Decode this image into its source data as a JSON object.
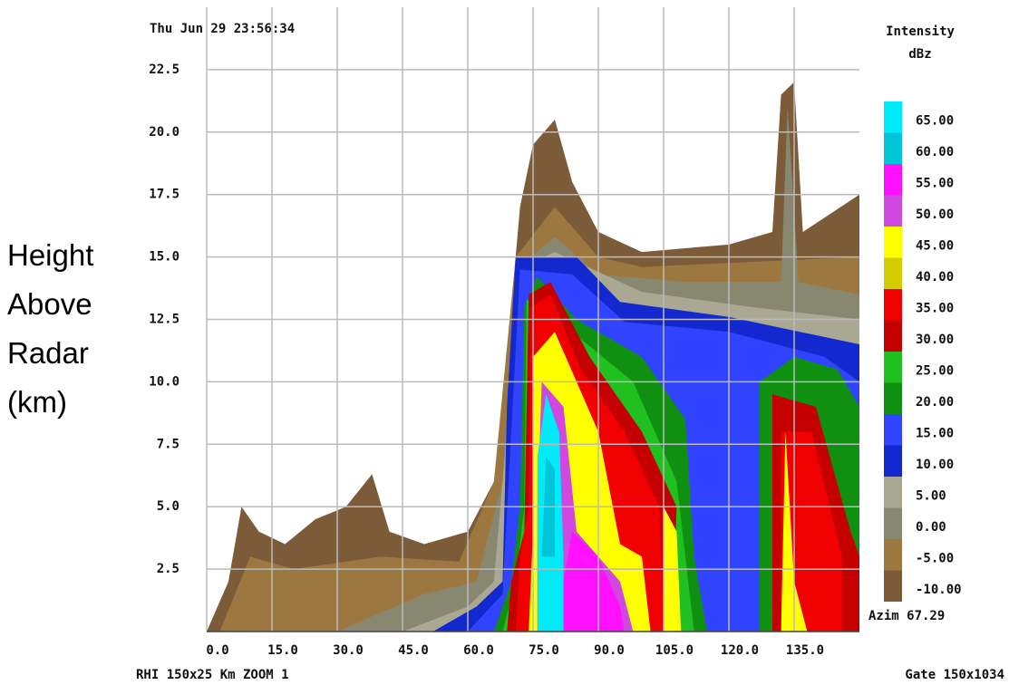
{
  "chart_data": {
    "type": "rhi",
    "title": "Thu Jun 29 23:56:34",
    "y_label": "Height Above Radar (km)",
    "azimuth": "Azim 67.29",
    "footer_left": "RHI 150x25 Km ZOOM 1",
    "footer_right": "Gate 150x1034",
    "xlim": [
      0,
      150
    ],
    "ylim": [
      0,
      25
    ],
    "xticks": [
      {
        "value": 0,
        "label": "0.0"
      },
      {
        "value": 15,
        "label": "15.0"
      },
      {
        "value": 30,
        "label": "30.0"
      },
      {
        "value": 45,
        "label": "45.0"
      },
      {
        "value": 60,
        "label": "60.0"
      },
      {
        "value": 75,
        "label": "75.0"
      },
      {
        "value": 90,
        "label": "90.0"
      },
      {
        "value": 105,
        "label": "105.0"
      },
      {
        "value": 120,
        "label": "120.0"
      },
      {
        "value": 135,
        "label": "135.0"
      }
    ],
    "yticks": [
      {
        "value": 2.5,
        "label": "2.5"
      },
      {
        "value": 5,
        "label": "5.0"
      },
      {
        "value": 7.5,
        "label": "7.5"
      },
      {
        "value": 10,
        "label": "10.0"
      },
      {
        "value": 12.5,
        "label": "12.5"
      },
      {
        "value": 15,
        "label": "15.0"
      },
      {
        "value": 17.5,
        "label": "17.5"
      },
      {
        "value": 20,
        "label": "20.0"
      },
      {
        "value": 22.5,
        "label": "22.5"
      }
    ],
    "grid": true,
    "colorbar": {
      "title": "Intensity",
      "unit": "dBz",
      "levels": [
        {
          "value": 65,
          "label": "65.00",
          "color": "#00eaf8"
        },
        {
          "value": 60,
          "label": "60.00",
          "color": "#00c4d8"
        },
        {
          "value": 55,
          "label": "55.00",
          "color": "#ff10ff"
        },
        {
          "value": 50,
          "label": "50.00",
          "color": "#d048e0"
        },
        {
          "value": 45,
          "label": "45.00",
          "color": "#ffff00"
        },
        {
          "value": 40,
          "label": "40.00",
          "color": "#d4cc00"
        },
        {
          "value": 35,
          "label": "35.00",
          "color": "#f00000"
        },
        {
          "value": 30,
          "label": "30.00",
          "color": "#c40000"
        },
        {
          "value": 25,
          "label": "25.00",
          "color": "#20c020"
        },
        {
          "value": 20,
          "label": "20.00",
          "color": "#109010"
        },
        {
          "value": 15,
          "label": "15.00",
          "color": "#3044ff"
        },
        {
          "value": 10,
          "label": "10.00",
          "color": "#1428d0"
        },
        {
          "value": 5,
          "label": "5.00",
          "color": "#aaa892"
        },
        {
          "value": 0,
          "label": "0.00",
          "color": "#888870"
        },
        {
          "value": -5,
          "label": "-5.00",
          "color": "#9c7840"
        },
        {
          "value": -10,
          "label": "-10.00",
          "color": "#7c5c38"
        }
      ]
    }
  }
}
